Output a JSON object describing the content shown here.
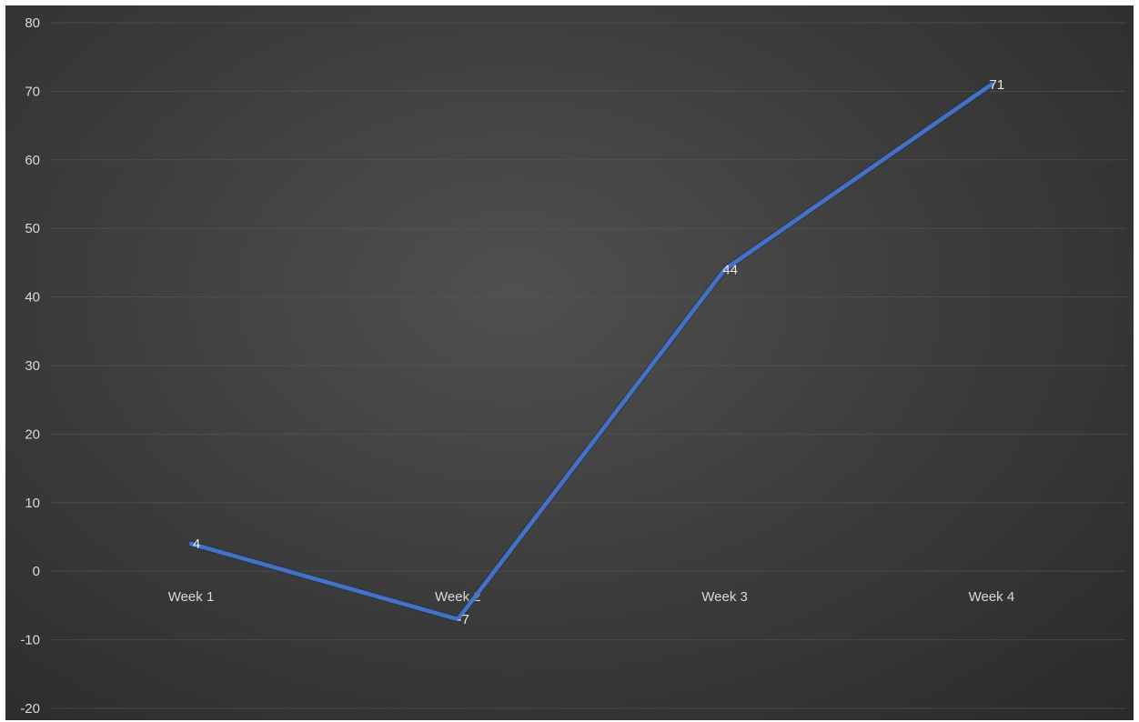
{
  "chart_data": {
    "type": "line",
    "categories": [
      "Week 1",
      "Week 2",
      "Week 3",
      "Week 4"
    ],
    "series": [
      {
        "values": [
          4,
          -7,
          44,
          71
        ],
        "color": "#4472C4"
      }
    ],
    "data_labels": [
      "4",
      "-7",
      "44",
      "71"
    ],
    "ylim": [
      -20,
      80
    ],
    "yticks": [
      -20,
      -10,
      0,
      10,
      20,
      30,
      40,
      50,
      60,
      70,
      80
    ],
    "grid": true,
    "legend": "none",
    "background": "#3f3f3f",
    "tick_color": "#d9d9d9"
  }
}
